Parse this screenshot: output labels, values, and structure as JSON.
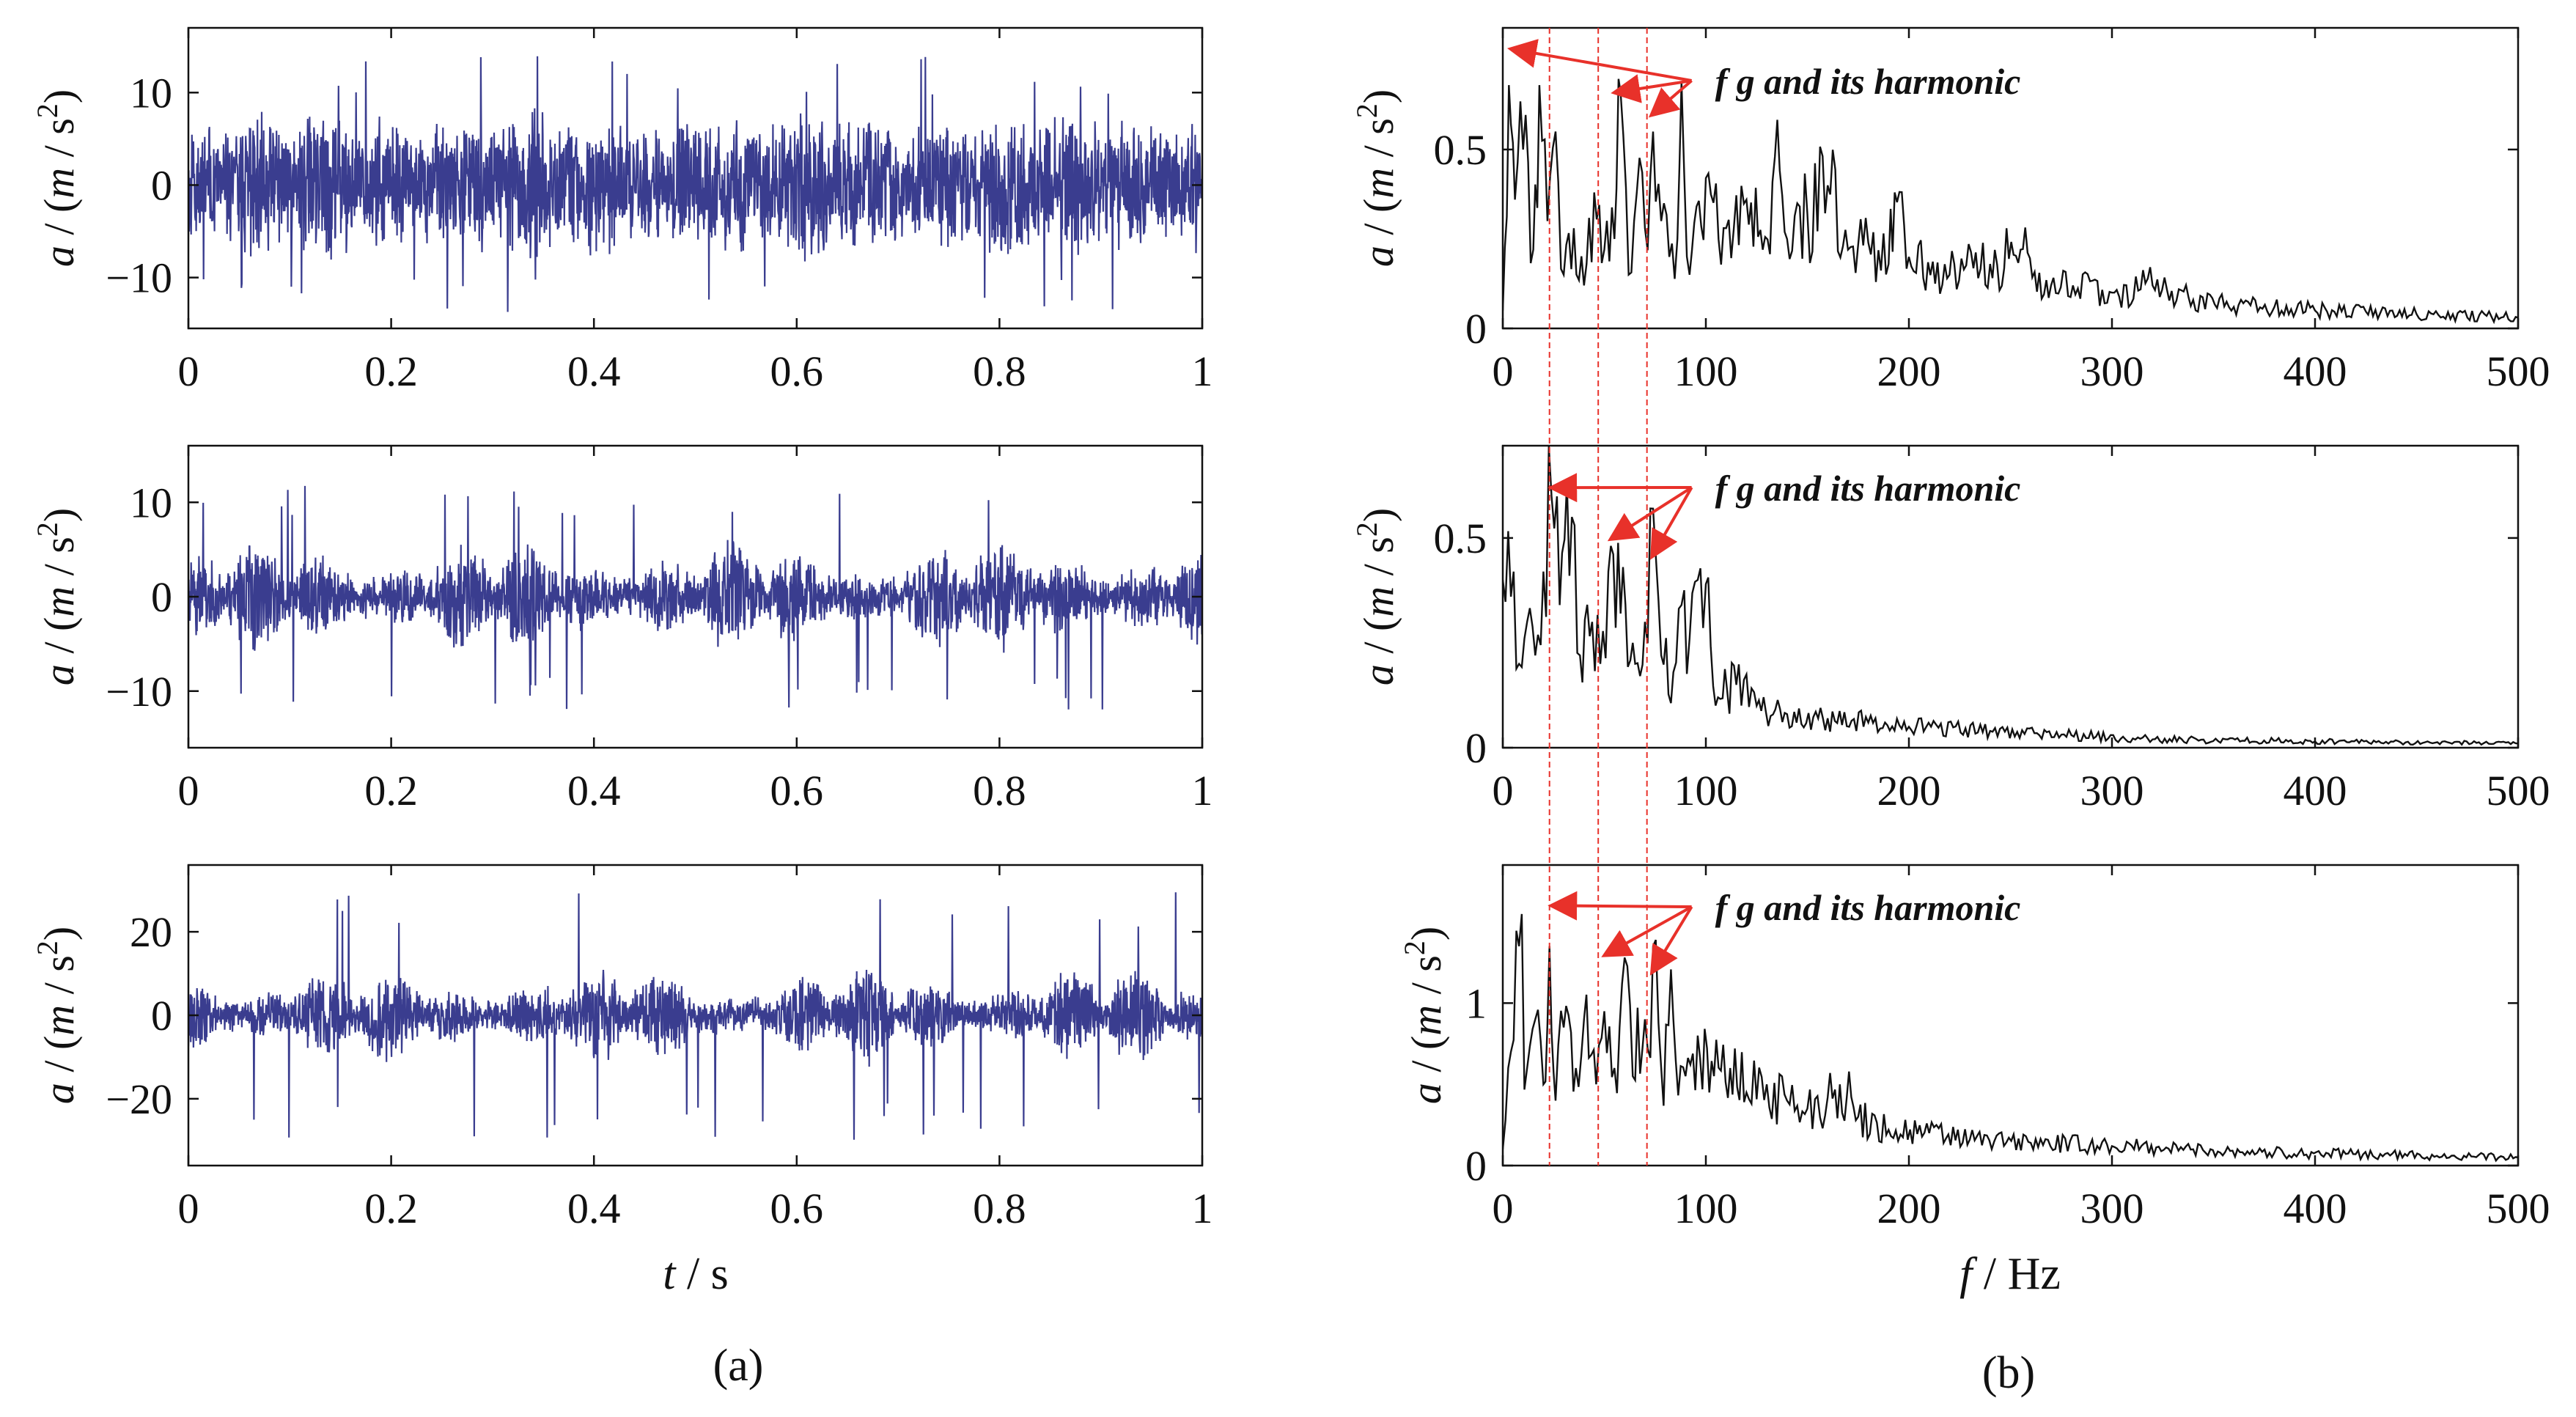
{
  "figure": {
    "panel_labels": [
      "(a)",
      "(b)"
    ],
    "time_xlabel": {
      "var": "t",
      "unit": " / s"
    },
    "freq_xlabel": {
      "var": "f",
      "unit": " / Hz"
    },
    "ylabel": {
      "var": "a",
      "rest": " / (m / s",
      "sup": "2",
      "close": ")"
    },
    "annotation": "f g  and its harmonic",
    "colors": {
      "signal": "#3a3d8f",
      "spectrum": "#111111",
      "marker": "#e8312a"
    }
  },
  "chart_data": [
    {
      "type": "line",
      "column": "a",
      "row": 1,
      "xlim": [
        0,
        1
      ],
      "ylim": [
        -15.5,
        17
      ],
      "xticks": [
        0,
        0.2,
        0.4,
        0.6,
        0.8,
        1
      ],
      "xtick_labels": [
        "0",
        "0.2",
        "0.4",
        "0.6",
        "0.8",
        "1"
      ],
      "yticks": [
        -10,
        0,
        10
      ],
      "ytick_labels": [
        "−10",
        "0",
        "10"
      ],
      "signal": {
        "amplitude": 4.2,
        "peak": 14,
        "envelope_depth": 0.25,
        "seed": 11
      }
    },
    {
      "type": "line",
      "column": "a",
      "row": 2,
      "xlim": [
        0,
        1
      ],
      "ylim": [
        -16,
        16
      ],
      "xticks": [
        0,
        0.2,
        0.4,
        0.6,
        0.8,
        1
      ],
      "xtick_labels": [
        "0",
        "0.2",
        "0.4",
        "0.6",
        "0.8",
        "1"
      ],
      "yticks": [
        -10,
        0,
        10
      ],
      "ytick_labels": [
        "−10",
        "0",
        "10"
      ],
      "signal": {
        "amplitude": 2.6,
        "peak": 12,
        "envelope_depth": 0.75,
        "seed": 23
      }
    },
    {
      "type": "line",
      "column": "a",
      "row": 3,
      "xlim": [
        0,
        1
      ],
      "ylim": [
        -36,
        36
      ],
      "xticks": [
        0,
        0.2,
        0.4,
        0.6,
        0.8,
        1
      ],
      "xtick_labels": [
        "0",
        "0.2",
        "0.4",
        "0.6",
        "0.8",
        "1"
      ],
      "yticks": [
        -20,
        0,
        20
      ],
      "ytick_labels": [
        "−20",
        "0",
        "20"
      ],
      "signal": {
        "amplitude": 5.0,
        "peak": 30,
        "envelope_depth": 0.8,
        "seed": 37
      }
    },
    {
      "type": "line",
      "column": "b",
      "row": 1,
      "xlim": [
        0,
        500
      ],
      "ylim": [
        0,
        0.84
      ],
      "xticks": [
        0,
        100,
        200,
        300,
        400,
        500
      ],
      "xtick_labels": [
        "0",
        "100",
        "200",
        "300",
        "400",
        "500"
      ],
      "yticks": [
        0,
        0.5
      ],
      "ytick_labels": [
        "0",
        "0.5"
      ],
      "marker_lines_hz": [
        23,
        47,
        71
      ],
      "spectrum_points": [
        [
          0,
          0.05
        ],
        [
          3,
          0.68
        ],
        [
          6,
          0.36
        ],
        [
          10,
          0.5
        ],
        [
          15,
          0.22
        ],
        [
          18,
          0.68
        ],
        [
          22,
          0.3
        ],
        [
          26,
          0.55
        ],
        [
          30,
          0.15
        ],
        [
          35,
          0.28
        ],
        [
          40,
          0.12
        ],
        [
          45,
          0.38
        ],
        [
          50,
          0.22
        ],
        [
          55,
          0.25
        ],
        [
          58,
          0.66
        ],
        [
          62,
          0.15
        ],
        [
          66,
          0.38
        ],
        [
          70,
          0.28
        ],
        [
          74,
          0.55
        ],
        [
          78,
          0.3
        ],
        [
          82,
          0.2
        ],
        [
          86,
          0.25
        ],
        [
          88,
          0.69
        ],
        [
          92,
          0.15
        ],
        [
          100,
          0.42
        ],
        [
          110,
          0.28
        ],
        [
          120,
          0.36
        ],
        [
          128,
          0.22
        ],
        [
          134,
          0.48
        ],
        [
          140,
          0.25
        ],
        [
          150,
          0.32
        ],
        [
          160,
          0.4
        ],
        [
          170,
          0.22
        ],
        [
          180,
          0.24
        ],
        [
          190,
          0.18
        ],
        [
          193,
          0.38
        ],
        [
          200,
          0.2
        ],
        [
          220,
          0.15
        ],
        [
          240,
          0.18
        ],
        [
          255,
          0.22
        ],
        [
          270,
          0.12
        ],
        [
          300,
          0.1
        ],
        [
          320,
          0.12
        ],
        [
          340,
          0.08
        ],
        [
          360,
          0.06
        ],
        [
          380,
          0.06
        ],
        [
          400,
          0.05
        ],
        [
          450,
          0.04
        ],
        [
          500,
          0.03
        ]
      ],
      "annotation_targets_hz": [
        [
          5,
          0.78
        ],
        [
          56,
          0.66
        ],
        [
          74,
          0.6
        ]
      ]
    },
    {
      "type": "line",
      "column": "b",
      "row": 2,
      "xlim": [
        0,
        500
      ],
      "ylim": [
        0,
        0.72
      ],
      "xticks": [
        0,
        100,
        200,
        300,
        400,
        500
      ],
      "xtick_labels": [
        "0",
        "100",
        "200",
        "300",
        "400",
        "500"
      ],
      "yticks": [
        0,
        0.5
      ],
      "ytick_labels": [
        "0",
        "0.5"
      ],
      "marker_lines_hz": [
        23,
        47,
        71
      ],
      "spectrum_points": [
        [
          0,
          0.4
        ],
        [
          4,
          0.36
        ],
        [
          8,
          0.2
        ],
        [
          12,
          0.3
        ],
        [
          16,
          0.22
        ],
        [
          20,
          0.42
        ],
        [
          24,
          0.6
        ],
        [
          28,
          0.34
        ],
        [
          34,
          0.55
        ],
        [
          38,
          0.22
        ],
        [
          44,
          0.3
        ],
        [
          48,
          0.2
        ],
        [
          52,
          0.42
        ],
        [
          58,
          0.32
        ],
        [
          64,
          0.25
        ],
        [
          70,
          0.3
        ],
        [
          74,
          0.57
        ],
        [
          78,
          0.22
        ],
        [
          84,
          0.18
        ],
        [
          88,
          0.34
        ],
        [
          92,
          0.26
        ],
        [
          96,
          0.4
        ],
        [
          100,
          0.39
        ],
        [
          106,
          0.12
        ],
        [
          115,
          0.15
        ],
        [
          125,
          0.1
        ],
        [
          140,
          0.08
        ],
        [
          160,
          0.07
        ],
        [
          180,
          0.06
        ],
        [
          200,
          0.05
        ],
        [
          240,
          0.04
        ],
        [
          280,
          0.03
        ],
        [
          320,
          0.02
        ],
        [
          400,
          0.015
        ],
        [
          500,
          0.01
        ]
      ],
      "annotation_targets_hz": [
        [
          25,
          0.62
        ],
        [
          54,
          0.5
        ],
        [
          74,
          0.46
        ]
      ]
    },
    {
      "type": "line",
      "column": "b",
      "row": 3,
      "xlim": [
        0,
        500
      ],
      "ylim": [
        0,
        1.85
      ],
      "xticks": [
        0,
        100,
        200,
        300,
        400,
        500
      ],
      "xtick_labels": [
        "0",
        "100",
        "200",
        "300",
        "400",
        "500"
      ],
      "yticks": [
        0,
        1
      ],
      "ytick_labels": [
        "0",
        "1"
      ],
      "marker_lines_hz": [
        23,
        47,
        71
      ],
      "spectrum_points": [
        [
          0,
          0.1
        ],
        [
          4,
          0.7
        ],
        [
          8,
          1.35
        ],
        [
          12,
          0.6
        ],
        [
          16,
          0.9
        ],
        [
          20,
          0.5
        ],
        [
          23,
          1.35
        ],
        [
          26,
          0.4
        ],
        [
          30,
          0.85
        ],
        [
          36,
          0.6
        ],
        [
          40,
          0.9
        ],
        [
          46,
          0.5
        ],
        [
          50,
          0.95
        ],
        [
          55,
          0.6
        ],
        [
          60,
          1.28
        ],
        [
          64,
          0.55
        ],
        [
          70,
          0.9
        ],
        [
          74,
          1.35
        ],
        [
          78,
          0.6
        ],
        [
          84,
          0.9
        ],
        [
          90,
          0.55
        ],
        [
          96,
          0.8
        ],
        [
          104,
          0.55
        ],
        [
          112,
          0.6
        ],
        [
          120,
          0.45
        ],
        [
          130,
          0.5
        ],
        [
          140,
          0.4
        ],
        [
          150,
          0.35
        ],
        [
          160,
          0.42
        ],
        [
          166,
          0.5
        ],
        [
          175,
          0.3
        ],
        [
          190,
          0.22
        ],
        [
          210,
          0.2
        ],
        [
          230,
          0.16
        ],
        [
          260,
          0.14
        ],
        [
          300,
          0.12
        ],
        [
          340,
          0.1
        ],
        [
          380,
          0.08
        ],
        [
          420,
          0.07
        ],
        [
          460,
          0.06
        ],
        [
          500,
          0.05
        ]
      ],
      "annotation_targets_hz": [
        [
          25,
          1.6
        ],
        [
          51,
          1.3
        ],
        [
          74,
          1.2
        ]
      ]
    }
  ]
}
